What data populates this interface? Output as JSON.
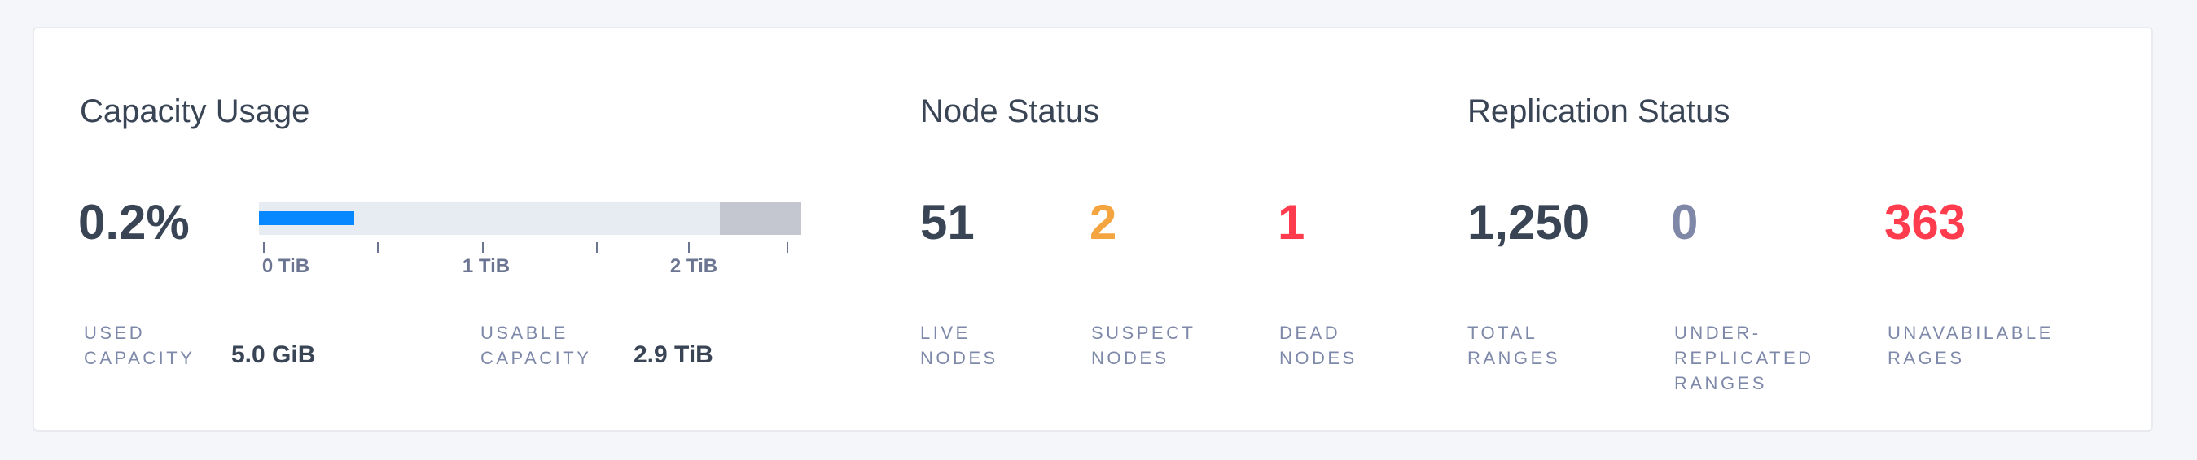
{
  "colors": {
    "primary_text": "#394455",
    "label": "#7e89a9",
    "capacity_fill": "#0788ff",
    "bar_track": "#e7ecf3",
    "bar_reserved": "#c5c7d0",
    "suspect": "#f5a540",
    "dead": "#ff3b4e",
    "zero": "#8088a8"
  },
  "capacity": {
    "title": "Capacity Usage",
    "percent": "0.2%",
    "bar": {
      "used_fraction": 0.0017,
      "usable_fraction": 0.85,
      "ticks": [
        "0 TiB",
        "1 TiB",
        "2 TiB"
      ]
    },
    "used_label": "USED CAPACITY",
    "used_value": "5.0 GiB",
    "usable_label": "USABLE CAPACITY",
    "usable_value": "2.9 TiB"
  },
  "nodes": {
    "title": "Node Status",
    "live": {
      "value": "51",
      "label": "LIVE NODES"
    },
    "suspect": {
      "value": "2",
      "label": "SUSPECT NODES"
    },
    "dead": {
      "value": "1",
      "label": "DEAD NODES"
    }
  },
  "replication": {
    "title": "Replication Status",
    "total": {
      "value": "1,250",
      "label": "TOTAL RANGES"
    },
    "under": {
      "value": "0",
      "label": "UNDER-REPLICATED RANGES"
    },
    "unavailable": {
      "value": "363",
      "label": "UNAVABILABLE RAGES"
    }
  }
}
